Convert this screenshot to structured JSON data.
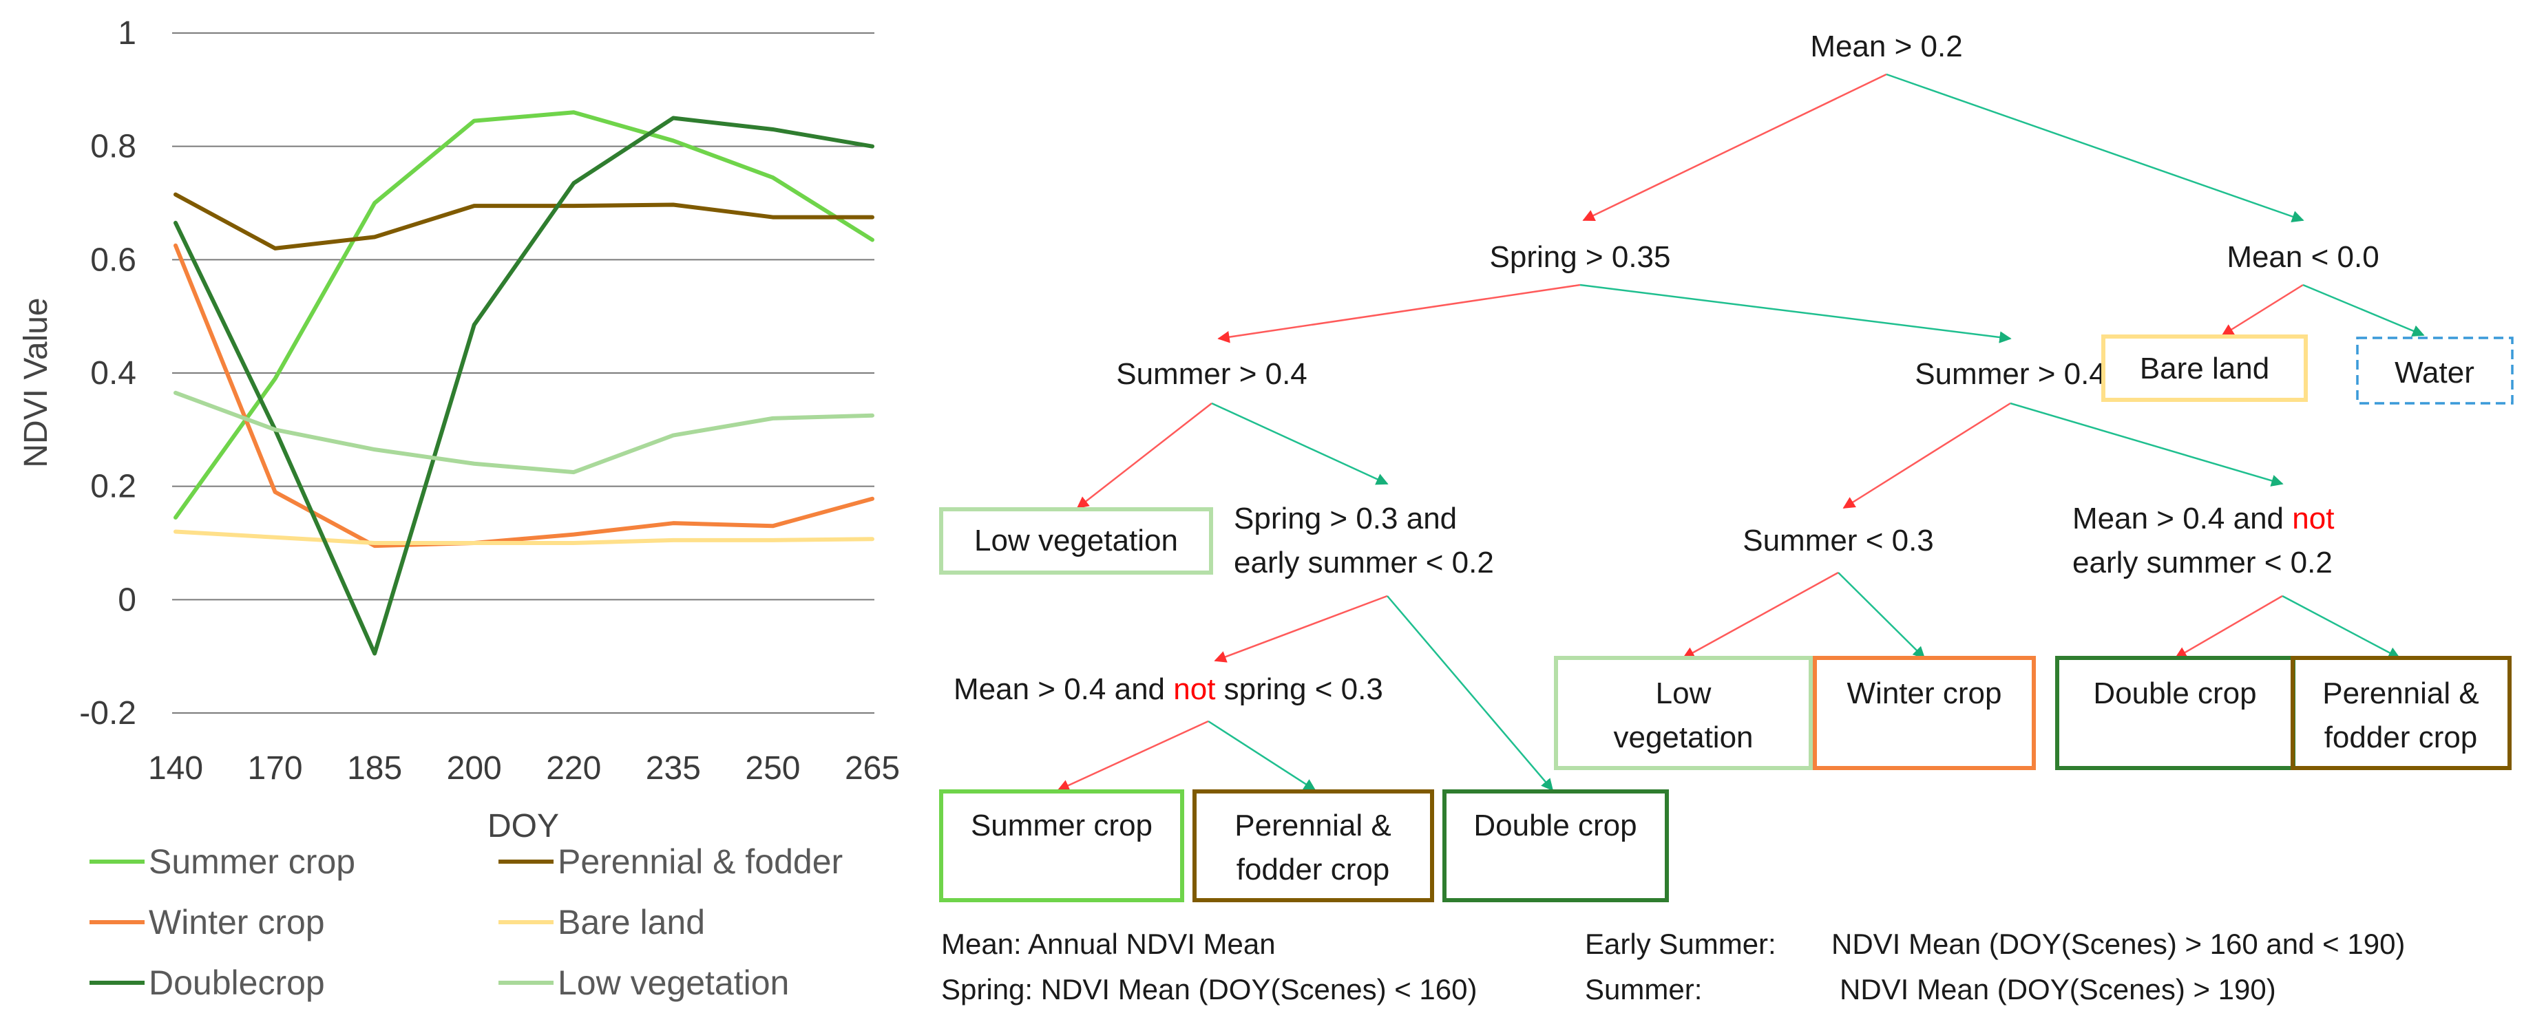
{
  "chart_data": {
    "type": "line",
    "title": "",
    "xlabel": "DOY",
    "ylabel": "NDVI Value",
    "categories": [
      "140",
      "170",
      "185",
      "200",
      "220",
      "235",
      "250",
      "265"
    ],
    "ylim": [
      -0.2,
      1.0
    ],
    "yticks": [
      -0.2,
      0,
      0.2,
      0.4,
      0.6,
      0.8,
      1
    ],
    "ytick_labels": [
      "-0.2",
      "0",
      "0.2",
      "0.4",
      "0.6",
      "0.8",
      "1"
    ],
    "grid": "horizontal",
    "legend_position": "bottom",
    "series": [
      {
        "name": "Summer crop",
        "color": "#6fd44a",
        "values": [
          0.145,
          0.39,
          0.7,
          0.845,
          0.86,
          0.81,
          0.745,
          0.635
        ]
      },
      {
        "name": "Perennial & fodder",
        "color": "#7f5a00",
        "values": [
          0.715,
          0.62,
          0.64,
          0.695,
          0.695,
          0.697,
          0.675,
          0.675
        ]
      },
      {
        "name": "Winter crop",
        "color": "#f5823c",
        "values": [
          0.625,
          0.19,
          0.095,
          0.1,
          0.115,
          0.135,
          0.13,
          0.178
        ]
      },
      {
        "name": "Bare land",
        "color": "#ffe08a",
        "values": [
          0.12,
          0.11,
          0.1,
          0.1,
          0.1,
          0.105,
          0.105,
          0.107
        ]
      },
      {
        "name": "Doublecrop",
        "color": "#2f7d2f",
        "values": [
          0.665,
          0.3,
          -0.095,
          0.485,
          0.735,
          0.85,
          0.83,
          0.8
        ]
      },
      {
        "name": "Low vegetation",
        "color": "#a9d99a",
        "values": [
          0.365,
          0.3,
          0.265,
          0.24,
          0.225,
          0.29,
          0.32,
          0.325
        ]
      }
    ]
  },
  "tree": {
    "nodes": {
      "n_root": "Mean > 0.2",
      "n_spring": "Spring > 0.35",
      "n_mean0": "Mean < 0.0",
      "n_summer_a": "Summer > 0.4",
      "n_summer_b": "Summer > 0.4",
      "n_spring03_l1": "Spring > 0.3 and",
      "n_spring03_l2": "early summer < 0.2",
      "n_summer03": "Summer < 0.3",
      "n_mean04_l1_a": "Mean > 0.4 and ",
      "n_mean04_l1_b": "not",
      "n_mean04_l2": "early summer < 0.2",
      "n_mean04b_a": "Mean > 0.4 and ",
      "n_mean04b_b": "not",
      "n_mean04b_c": " spring < 0.3"
    },
    "leaves": {
      "bare_land": "Bare land",
      "water": "Water",
      "low_veg_a": "Low vegetation",
      "low_veg_b_l1": "Low",
      "low_veg_b_l2": "vegetation",
      "winter_crop": "Winter crop",
      "double_crop_a": "Double crop",
      "perennial_a_l1": "Perennial &",
      "perennial_a_l2": "fodder crop",
      "summer_crop": "Summer crop",
      "perennial_b_l1": "Perennial &",
      "perennial_b_l2": "fodder crop",
      "double_crop_b": "Double crop"
    },
    "colors": {
      "yes_arrow": "#ff5a5a",
      "no_arrow": "#1fbf8f",
      "bare_land": "#ffe08a",
      "water": "#3a9ad9",
      "low_veg": "#b5dfa8",
      "winter_crop": "#f5823c",
      "double_crop": "#2f7d2f",
      "perennial": "#7f5a00",
      "summer_crop": "#6fd44a"
    }
  },
  "notes": {
    "mean": "Mean:  Annual NDVI Mean",
    "spring": "Spring: NDVI Mean (DOY(Scenes) < 160)",
    "early_summer_label": "Early Summer:",
    "early_summer_value": "NDVI Mean (DOY(Scenes) > 160 and < 190)",
    "summer_label": "Summer:",
    "summer_value": "NDVI Mean (DOY(Scenes) > 190)"
  }
}
